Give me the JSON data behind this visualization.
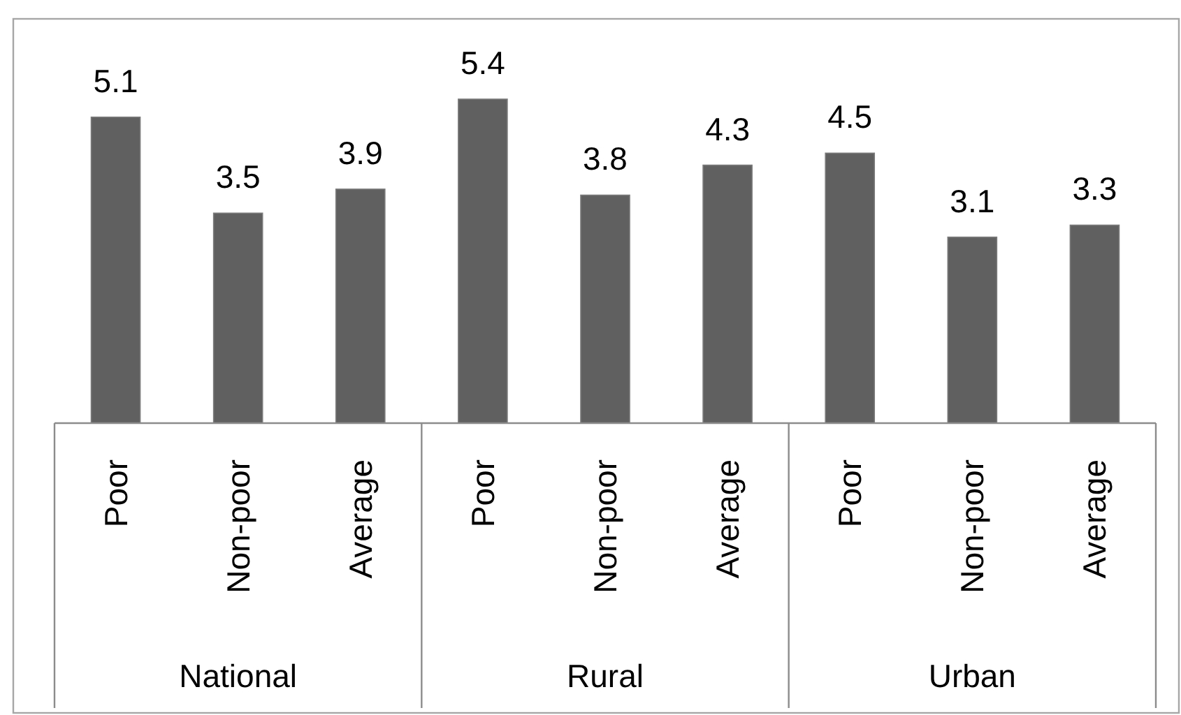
{
  "chart_data": {
    "type": "bar",
    "categories": [
      "Poor",
      "Non-poor",
      "Average",
      "Poor",
      "Non-poor",
      "Average",
      "Poor",
      "Non-poor",
      "Average"
    ],
    "values": [
      5.1,
      3.5,
      3.9,
      5.4,
      3.8,
      4.3,
      4.5,
      3.1,
      3.3
    ],
    "color": "#606060",
    "tick_labels": "x",
    "data_labels": true,
    "annotations": [
      "National",
      "Rural",
      "Urban"
    ]
  }
}
